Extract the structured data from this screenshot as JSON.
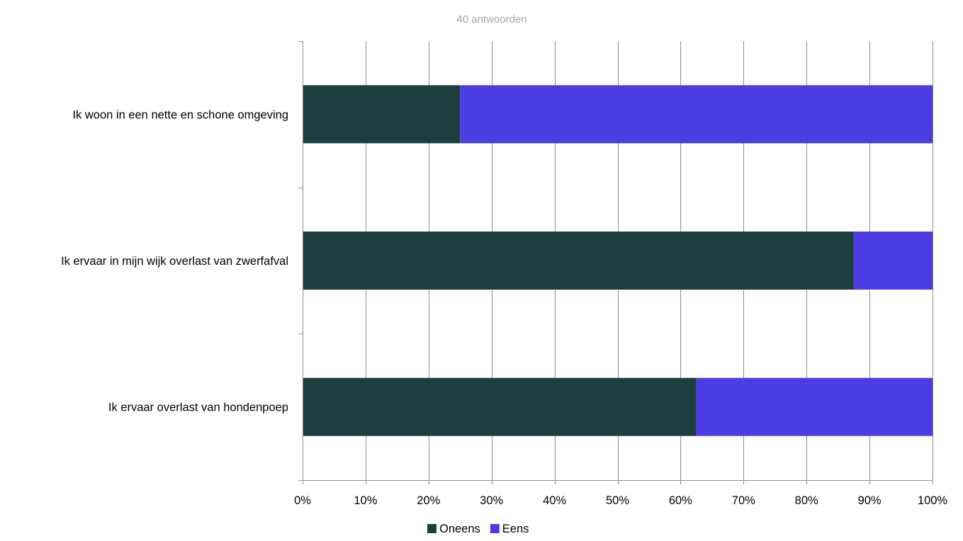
{
  "chart_data": {
    "type": "bar",
    "orientation": "horizontal",
    "stacked": true,
    "subtitle": "40 antwoorden",
    "categories": [
      "Ik woon in een nette en schone omgeving",
      "Ik ervaar in mijn wijk overlast van zwerfafval",
      "Ik ervaar overlast van hondenpoep"
    ],
    "series": [
      {
        "name": "Oneens",
        "color": "#1d3d3f",
        "values": [
          25,
          87.5,
          62.5
        ]
      },
      {
        "name": "Eens",
        "color": "#4b3ce3",
        "values": [
          75,
          12.5,
          37.5
        ]
      }
    ],
    "xlim": [
      0,
      100
    ],
    "xticks": [
      "0%",
      "10%",
      "20%",
      "30%",
      "40%",
      "50%",
      "60%",
      "70%",
      "80%",
      "90%",
      "100%"
    ],
    "grid": true,
    "legend_position": "bottom"
  }
}
